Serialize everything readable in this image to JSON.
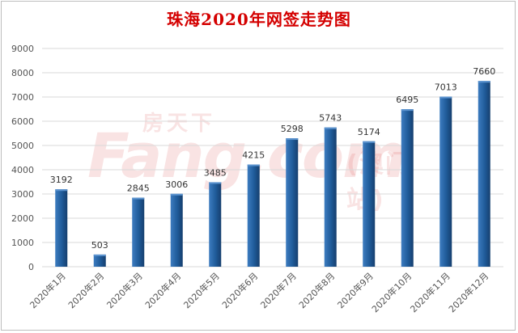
{
  "chart_data": {
    "type": "bar",
    "title": "珠海2020年网签走势图",
    "categories": [
      "2020年1月",
      "2020年2月",
      "2020年3月",
      "2020年4月",
      "2020年5月",
      "2020年6月",
      "2020年7月",
      "2020年8月",
      "2020年9月",
      "2020年10月",
      "2020年11月",
      "2020年12月"
    ],
    "values": [
      3192,
      503,
      2845,
      3006,
      3485,
      4215,
      5298,
      5743,
      5174,
      6495,
      7013,
      7660
    ],
    "ylim": [
      0,
      9000
    ],
    "yticks": [
      0,
      1000,
      2000,
      3000,
      4000,
      5000,
      6000,
      7000,
      8000,
      9000
    ],
    "xlabel": "",
    "ylabel": "",
    "grid": true,
    "legend": "none",
    "bar_color": "#1f5b99",
    "grid_color": "#d9d9d9"
  },
  "watermark": {
    "brand_latin": "Fang.com",
    "brand_cn": "房天下",
    "site": "(澳门站)"
  }
}
